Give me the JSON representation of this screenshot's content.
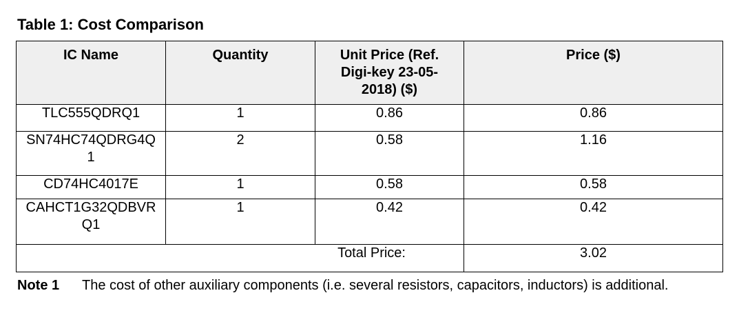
{
  "caption": "Table 1: Cost Comparison",
  "table": {
    "headers": [
      "IC Name",
      "Quantity",
      "Unit Price (Ref. Digi-key 23-05-2018) ($)",
      "Price ($)"
    ],
    "rows": [
      {
        "ic_name": "TLC555QDRQ1",
        "quantity": "1",
        "unit_price": "0.86",
        "price": "0.86"
      },
      {
        "ic_name": "SN74HC74QDRG4Q1",
        "quantity": "2",
        "unit_price": "0.58",
        "price": "1.16"
      },
      {
        "ic_name": "CD74HC4017E",
        "quantity": "1",
        "unit_price": "0.58",
        "price": "0.58"
      },
      {
        "ic_name": "CAHCT1G32QDBVRQ1",
        "quantity": "1",
        "unit_price": "0.42",
        "price": "0.42"
      }
    ],
    "total_label": "Total Price:",
    "total_value": "3.02"
  },
  "note": {
    "label": "Note 1",
    "text": "The cost of other auxiliary components (i.e. several resistors, capacitors, inductors) is additional."
  }
}
